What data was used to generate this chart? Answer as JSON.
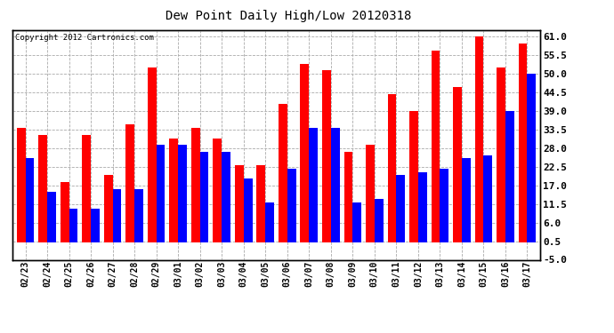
{
  "title": "Dew Point Daily High/Low 20120318",
  "copyright": "Copyright 2012 Cartronics.com",
  "dates": [
    "02/23",
    "02/24",
    "02/25",
    "02/26",
    "02/27",
    "02/28",
    "02/29",
    "03/01",
    "03/02",
    "03/03",
    "03/04",
    "03/05",
    "03/06",
    "03/07",
    "03/08",
    "03/09",
    "03/10",
    "03/11",
    "03/12",
    "03/13",
    "03/14",
    "03/15",
    "03/16",
    "03/17"
  ],
  "high": [
    34,
    32,
    18,
    32,
    20,
    35,
    52,
    31,
    34,
    31,
    23,
    23,
    41,
    53,
    51,
    27,
    29,
    44,
    39,
    57,
    46,
    61,
    52,
    59
  ],
  "low": [
    25,
    15,
    10,
    10,
    16,
    16,
    29,
    29,
    27,
    27,
    19,
    12,
    22,
    34,
    34,
    12,
    13,
    20,
    21,
    22,
    25,
    26,
    39,
    50
  ],
  "high_color": "#ff0000",
  "low_color": "#0000ff",
  "bg_color": "#ffffff",
  "plot_bg": "#ffffff",
  "grid_color": "#aaaaaa",
  "ylim": [
    -5,
    63
  ],
  "yticks": [
    -5.0,
    0.5,
    6.0,
    11.5,
    17.0,
    22.5,
    28.0,
    33.5,
    39.0,
    44.5,
    50.0,
    55.5,
    61.0
  ],
  "ytick_labels": [
    "-5.0",
    "0.5",
    "6.0",
    "11.5",
    "17.0",
    "22.5",
    "28.0",
    "33.5",
    "39.0",
    "44.5",
    "50.0",
    "55.5",
    "61.0"
  ],
  "bar_width": 0.4
}
